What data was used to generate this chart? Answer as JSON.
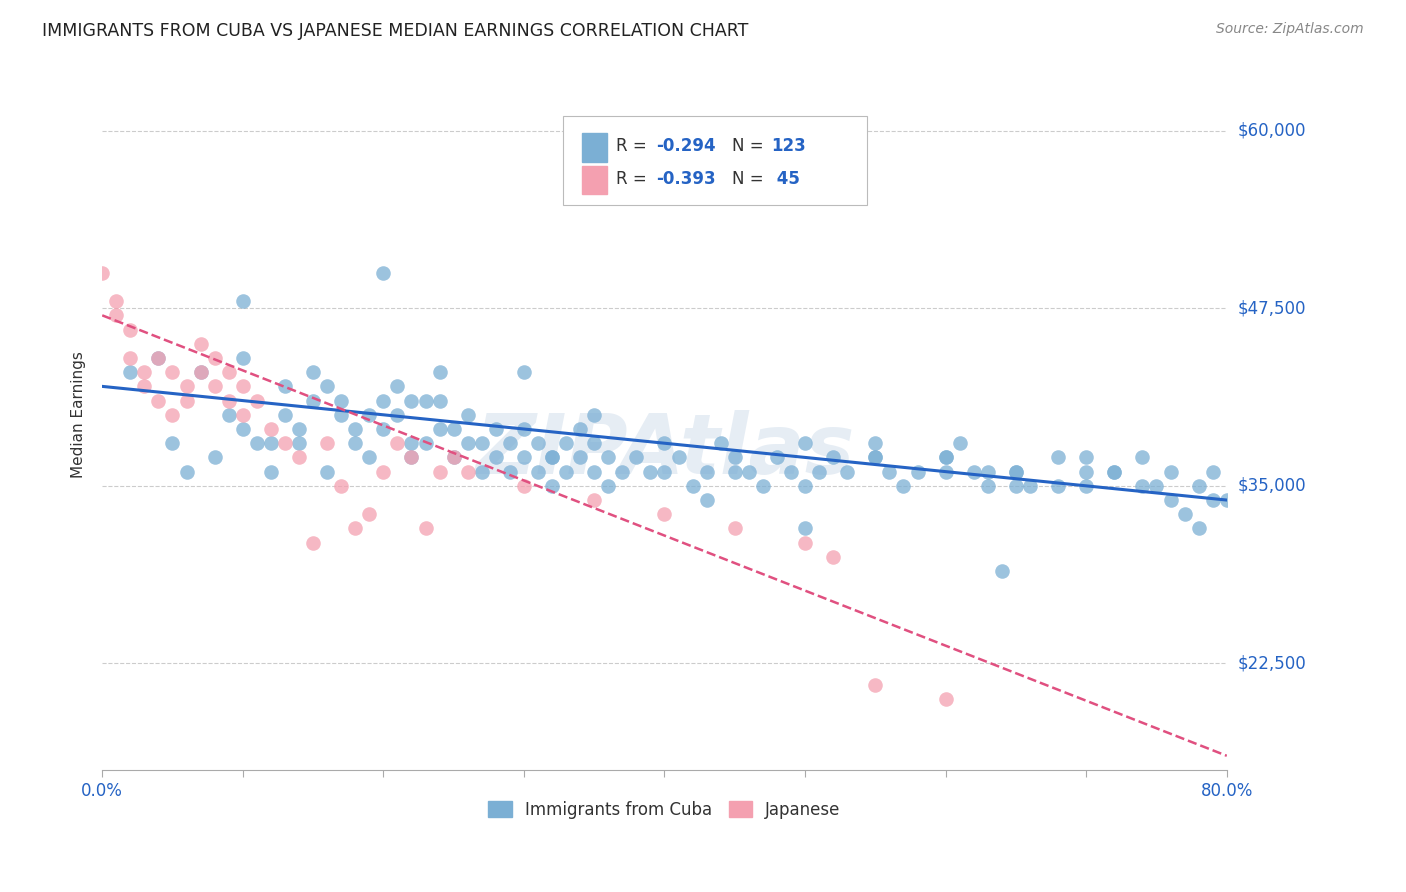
{
  "title": "IMMIGRANTS FROM CUBA VS JAPANESE MEDIAN EARNINGS CORRELATION CHART",
  "source": "Source: ZipAtlas.com",
  "ylabel": "Median Earnings",
  "y_ticks": [
    22500,
    35000,
    47500,
    60000
  ],
  "y_tick_labels": [
    "$22,500",
    "$35,000",
    "$47,500",
    "$60,000"
  ],
  "xlim": [
    0.0,
    0.8
  ],
  "ylim": [
    15000,
    65000
  ],
  "legend_label1": "Immigrants from Cuba",
  "legend_label2": "Japanese",
  "color_blue": "#7bafd4",
  "color_pink": "#f4a0b0",
  "color_line_blue": "#2563c4",
  "color_line_pink": "#e05080",
  "color_text_blue": "#2563c4",
  "background": "#ffffff",
  "grid_color": "#cccccc",
  "watermark": "ZIPAtlas",
  "blue_scatter_x": [
    0.02,
    0.04,
    0.05,
    0.06,
    0.07,
    0.08,
    0.09,
    0.1,
    0.11,
    0.12,
    0.12,
    0.13,
    0.13,
    0.14,
    0.14,
    0.15,
    0.15,
    0.16,
    0.16,
    0.17,
    0.17,
    0.18,
    0.18,
    0.19,
    0.19,
    0.2,
    0.2,
    0.21,
    0.21,
    0.22,
    0.22,
    0.23,
    0.23,
    0.24,
    0.24,
    0.25,
    0.25,
    0.26,
    0.26,
    0.27,
    0.27,
    0.28,
    0.28,
    0.29,
    0.29,
    0.3,
    0.3,
    0.31,
    0.31,
    0.32,
    0.32,
    0.33,
    0.33,
    0.34,
    0.34,
    0.35,
    0.35,
    0.36,
    0.36,
    0.37,
    0.38,
    0.39,
    0.4,
    0.41,
    0.42,
    0.43,
    0.44,
    0.45,
    0.46,
    0.47,
    0.48,
    0.49,
    0.5,
    0.51,
    0.52,
    0.53,
    0.55,
    0.57,
    0.58,
    0.6,
    0.61,
    0.62,
    0.63,
    0.65,
    0.66,
    0.68,
    0.7,
    0.72,
    0.74,
    0.75,
    0.76,
    0.77,
    0.78,
    0.2,
    0.3,
    0.35,
    0.4,
    0.45,
    0.5,
    0.55,
    0.6,
    0.65,
    0.7,
    0.55,
    0.6,
    0.63,
    0.65,
    0.68,
    0.7,
    0.72,
    0.74,
    0.76,
    0.78,
    0.79,
    0.79,
    0.8,
    0.1,
    0.1,
    0.22,
    0.24,
    0.32,
    0.43,
    0.5,
    0.56,
    0.64
  ],
  "blue_scatter_y": [
    43000,
    44000,
    38000,
    36000,
    43000,
    37000,
    40000,
    44000,
    38000,
    36000,
    38000,
    42000,
    40000,
    38000,
    39000,
    41000,
    43000,
    42000,
    36000,
    40000,
    41000,
    39000,
    38000,
    40000,
    37000,
    41000,
    39000,
    40000,
    42000,
    38000,
    37000,
    41000,
    38000,
    39000,
    41000,
    37000,
    39000,
    38000,
    40000,
    36000,
    38000,
    39000,
    37000,
    38000,
    36000,
    37000,
    39000,
    38000,
    36000,
    37000,
    35000,
    38000,
    36000,
    39000,
    37000,
    36000,
    38000,
    37000,
    35000,
    36000,
    37000,
    36000,
    36000,
    37000,
    35000,
    36000,
    38000,
    37000,
    36000,
    35000,
    37000,
    36000,
    35000,
    36000,
    37000,
    36000,
    37000,
    35000,
    36000,
    37000,
    38000,
    36000,
    35000,
    36000,
    35000,
    37000,
    35000,
    36000,
    37000,
    35000,
    36000,
    33000,
    32000,
    50000,
    43000,
    40000,
    38000,
    36000,
    38000,
    37000,
    36000,
    35000,
    36000,
    38000,
    37000,
    36000,
    36000,
    35000,
    37000,
    36000,
    35000,
    34000,
    35000,
    36000,
    34000,
    34000,
    48000,
    39000,
    41000,
    43000,
    37000,
    34000,
    32000,
    36000,
    29000
  ],
  "pink_scatter_x": [
    0.0,
    0.01,
    0.01,
    0.02,
    0.02,
    0.03,
    0.03,
    0.04,
    0.04,
    0.05,
    0.05,
    0.06,
    0.06,
    0.07,
    0.07,
    0.08,
    0.08,
    0.09,
    0.09,
    0.1,
    0.1,
    0.11,
    0.12,
    0.13,
    0.14,
    0.15,
    0.16,
    0.17,
    0.18,
    0.19,
    0.2,
    0.21,
    0.22,
    0.23,
    0.24,
    0.3,
    0.35,
    0.4,
    0.45,
    0.5,
    0.52,
    0.55,
    0.6,
    0.25,
    0.26
  ],
  "pink_scatter_y": [
    50000,
    48000,
    47000,
    44000,
    46000,
    43000,
    42000,
    44000,
    41000,
    43000,
    40000,
    42000,
    41000,
    45000,
    43000,
    42000,
    44000,
    43000,
    41000,
    42000,
    40000,
    41000,
    39000,
    38000,
    37000,
    31000,
    38000,
    35000,
    32000,
    33000,
    36000,
    38000,
    37000,
    32000,
    36000,
    35000,
    34000,
    33000,
    32000,
    31000,
    30000,
    21000,
    20000,
    37000,
    36000
  ],
  "blue_line_x": [
    0.0,
    0.8
  ],
  "blue_line_y": [
    42000,
    34000
  ],
  "pink_line_x": [
    0.0,
    0.8
  ],
  "pink_line_y": [
    47000,
    16000
  ]
}
